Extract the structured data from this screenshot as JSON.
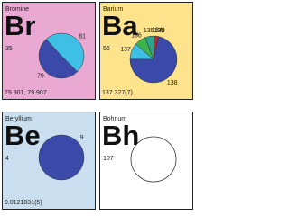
{
  "chart_data": [
    {
      "type": "pie",
      "name": "Bromine",
      "symbol": "Br",
      "number": 35,
      "weight": "79.901, 79.907",
      "background": "#e9a9d2",
      "categories": [
        "79",
        "81"
      ],
      "values": [
        50.7,
        49.3
      ],
      "colors": [
        "#3b4aa8",
        "#3ec0e6"
      ]
    },
    {
      "type": "pie",
      "name": "Barium",
      "symbol": "Ba",
      "number": 56,
      "weight": "137.327(7)",
      "background": "#fde48c",
      "categories": [
        "130",
        "132",
        "134",
        "135",
        "136",
        "137",
        "138"
      ],
      "values": [
        0.1,
        0.1,
        2.4,
        6.6,
        7.9,
        11.2,
        71.7
      ],
      "colors": [
        "#f2c200",
        "#f08a00",
        "#d9232a",
        "#2aa58c",
        "#3cb44b",
        "#3ec0e6",
        "#3b4aa8"
      ]
    },
    {
      "type": "pie",
      "name": "Beryllium",
      "symbol": "Be",
      "number": 4,
      "weight": "9.0121831(5)",
      "background": "#c9dff0",
      "categories": [
        "9"
      ],
      "values": [
        100
      ],
      "colors": [
        "#3b4aa8"
      ]
    },
    {
      "type": "pie",
      "name": "Bohrium",
      "symbol": "Bh",
      "number": 107,
      "background": "#ffffff",
      "categories": [],
      "values": [],
      "colors": []
    }
  ]
}
